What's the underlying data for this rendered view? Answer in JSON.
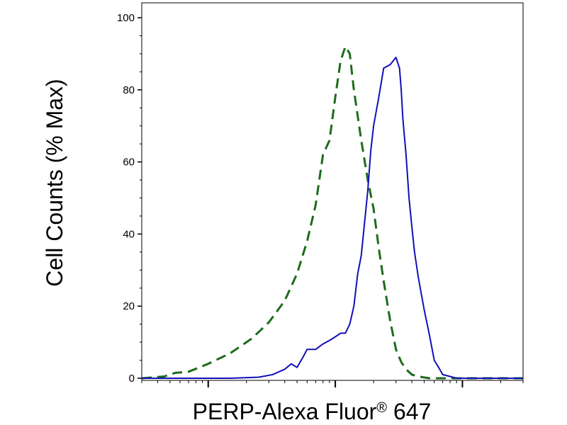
{
  "chart_data": {
    "type": "line",
    "title": "",
    "xlabel": "PERP-Alexa Fluor",
    "xlabel_sup": "®",
    "xlabel_suffix": " 647",
    "ylabel": "Cell Counts (% Max)",
    "x_scale": "log",
    "xlim": [
      0.3,
      300
    ],
    "ylim": [
      0,
      100
    ],
    "y_ticks": [
      {
        "value": 0,
        "label": "0"
      },
      {
        "value": 20,
        "label": "20"
      },
      {
        "value": 40,
        "label": "40"
      },
      {
        "value": 60,
        "label": "60"
      },
      {
        "value": 80,
        "label": "80"
      },
      {
        "value": 100,
        "label": "100"
      }
    ],
    "x_major_ticks": [
      1,
      10,
      100
    ],
    "grid": false,
    "series": [
      {
        "style": "dashed",
        "color": "#1d6b1d",
        "x": [
          0.3,
          0.45,
          0.55,
          0.7,
          1.0,
          1.5,
          2.2,
          3.0,
          4.0,
          5.0,
          6.0,
          7.0,
          8.0,
          9.0,
          10.0,
          11.0,
          12.0,
          13.0,
          14.0,
          16.0,
          18.0,
          20.0,
          22.0,
          24.0,
          27.0,
          30.0,
          33.0,
          36.0,
          40.0,
          45.0,
          55.0,
          70.0,
          90.0,
          120.0,
          300.0
        ],
        "y": [
          0,
          0.5,
          1.5,
          1.8,
          4.0,
          7.0,
          11.0,
          15.5,
          21.5,
          29.0,
          38.0,
          48.0,
          62.0,
          66.0,
          78.0,
          88.0,
          92.0,
          90.0,
          80.0,
          66.0,
          55.0,
          47.0,
          36.0,
          27.0,
          16.0,
          8.0,
          4.5,
          2.5,
          1.0,
          0.5,
          0,
          0,
          0,
          0,
          0
        ]
      },
      {
        "style": "solid",
        "color": "#1010b8",
        "x": [
          0.3,
          1.5,
          2.5,
          3.2,
          4.0,
          4.5,
          5.0,
          5.5,
          6.0,
          7.0,
          8.0,
          9.0,
          10.0,
          11.0,
          12.0,
          13.0,
          14.0,
          15.0,
          16.0,
          18.0,
          19.0,
          20.0,
          22.0,
          24.0,
          27.0,
          30.0,
          32.0,
          33.0,
          34.0,
          36.0,
          38.0,
          40.0,
          42.0,
          45.0,
          50.0,
          55.0,
          60.0,
          65.0,
          70.0,
          80.0,
          90.0,
          100.0,
          300.0
        ],
        "y": [
          0,
          0,
          0.3,
          1.0,
          2.5,
          4.0,
          3.0,
          5.5,
          8.0,
          8.0,
          9.5,
          10.5,
          11.5,
          12.5,
          12.5,
          15.0,
          20.0,
          29.0,
          34.0,
          52.0,
          63.0,
          70.0,
          78.0,
          86.0,
          87.0,
          89.0,
          86.0,
          80.0,
          72.0,
          62.0,
          50.0,
          42.0,
          35.0,
          28.0,
          19.0,
          12.0,
          5.0,
          3.0,
          1.0,
          0.5,
          0,
          0,
          0
        ]
      }
    ]
  }
}
